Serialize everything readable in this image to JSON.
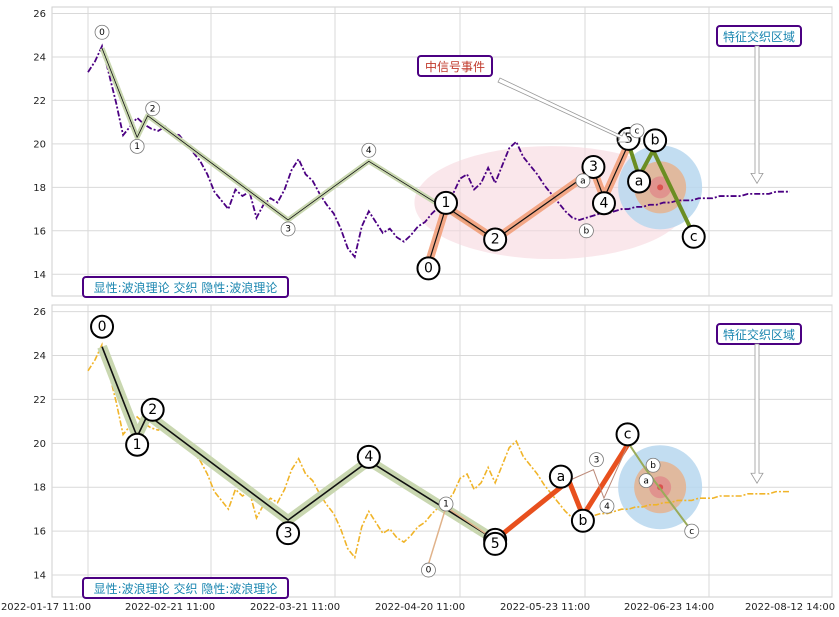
{
  "colors": {
    "top_price": "#4b0082",
    "bottom_price": "#f0b429",
    "wave_band": "#c9d7b0",
    "wave_line": "#111111",
    "orange_band": "#f2a07b",
    "green_seg": "#6b8e23",
    "red_seg": "#e8501e",
    "ellipse_fill": "#f7d7de",
    "target_outer": "#b7d7ef",
    "target_inner": "#e7b08a",
    "target_center": "#d9534f",
    "box_border": "#4b0082",
    "box_text_blue": "#1a86b0",
    "box_text_red": "#c0392b"
  },
  "chart_data": [
    {
      "type": "line",
      "panel": "top",
      "y_ticks": [
        "14",
        "16",
        "18",
        "20",
        "22",
        "24",
        "26"
      ],
      "ylim": [
        13.0,
        26.3
      ],
      "x_index_range": [
        0,
        100
      ],
      "grid": true,
      "series": [
        {
          "style": "dash-dot",
          "x": [
            0,
            1,
            2,
            3,
            4,
            5,
            6,
            7,
            8,
            9,
            10,
            11,
            12,
            13,
            14,
            15,
            16,
            17,
            18,
            19,
            20,
            21,
            22,
            23,
            24,
            25,
            26,
            27,
            28,
            29,
            30,
            31,
            32,
            33,
            34,
            35,
            36,
            37,
            38,
            39,
            40,
            41,
            42,
            43,
            44,
            45,
            46,
            47,
            48,
            49,
            50,
            51,
            52,
            53,
            54,
            55,
            56,
            57,
            58,
            59,
            60,
            61,
            62,
            63,
            64,
            65,
            66,
            67,
            68,
            69,
            70,
            71,
            72,
            73,
            74,
            75,
            76,
            77,
            78,
            79,
            80,
            81,
            82,
            83,
            84,
            85,
            86,
            87,
            88,
            89,
            90,
            91,
            92,
            93,
            94,
            95,
            96,
            97,
            98,
            99,
            100
          ],
          "y": [
            23.3,
            23.8,
            24.5,
            23.2,
            21.9,
            20.4,
            20.8,
            21.2,
            20.9,
            20.7,
            20.6,
            20.8,
            20.5,
            20.4,
            20.0,
            19.6,
            19.2,
            18.6,
            17.8,
            17.4,
            17.0,
            17.9,
            17.6,
            17.8,
            16.6,
            17.2,
            17.5,
            17.3,
            17.9,
            18.8,
            19.3,
            18.6,
            18.3,
            17.7,
            17.2,
            16.8,
            16.1,
            15.2,
            14.8,
            16.2,
            16.9,
            16.4,
            15.9,
            16.1,
            15.7,
            15.5,
            15.8,
            16.2,
            16.4,
            16.8,
            17.1,
            17.3,
            17.7,
            18.4,
            18.6,
            17.9,
            18.2,
            18.9,
            18.2,
            19.0,
            19.8,
            20.1,
            19.4,
            19.0,
            18.6,
            18.1,
            17.7,
            17.3,
            16.9,
            16.6,
            16.5,
            16.6,
            16.7,
            16.8,
            16.8,
            16.9,
            17.0,
            17.0,
            17.1,
            17.1,
            17.2,
            17.2,
            17.3,
            17.3,
            17.4,
            17.4,
            17.4,
            17.5,
            17.5,
            17.5,
            17.6,
            17.6,
            17.6,
            17.6,
            17.7,
            17.7,
            17.7,
            17.7,
            17.8,
            17.8,
            17.8
          ]
        }
      ],
      "wave_points": [
        {
          "label": "0",
          "x": 2.0,
          "y": 24.4
        },
        {
          "label": "1",
          "x": 7.0,
          "y": 20.3
        },
        {
          "label": "2",
          "x": 8.5,
          "y": 21.3
        },
        {
          "label": "3",
          "x": 28.5,
          "y": 16.5
        },
        {
          "label": "4",
          "x": 40.0,
          "y": 19.2
        },
        {
          "label": "5",
          "x": 58.0,
          "y": 15.6
        }
      ],
      "sub_wave_points": [
        {
          "label": "0",
          "x": 48.5,
          "y": 14.5
        },
        {
          "label": "1",
          "x": 51.0,
          "y": 17.1
        },
        {
          "label": "2",
          "x": 58.0,
          "y": 15.6
        },
        {
          "label": "3",
          "x": 72.0,
          "y": 18.8
        },
        {
          "label": "4",
          "x": 73.5,
          "y": 17.5
        },
        {
          "label": "5",
          "x": 77.0,
          "y": 20.0
        },
        {
          "label": "a",
          "x": 78.5,
          "y": 18.5
        },
        {
          "label": "b",
          "x": 80.5,
          "y": 19.7
        },
        {
          "label": "c",
          "x": 86.0,
          "y": 16.0
        }
      ],
      "small_labels": [
        "a",
        "b",
        "c"
      ],
      "ellipse": {
        "x_center": 66.0,
        "y_center": 17.3,
        "x_radius": 19.5,
        "y_radius": 2.6
      },
      "target": {
        "x": 81.5,
        "y": 18.0
      },
      "annotations": {
        "signal": "中信号事件",
        "zone": "特征交织区域",
        "footer": "显性:波浪理论 交织 隐性:波浪理论"
      }
    },
    {
      "type": "line",
      "panel": "bottom",
      "y_ticks": [
        "14",
        "16",
        "18",
        "20",
        "22",
        "24",
        "26"
      ],
      "ylim": [
        13.0,
        26.3
      ],
      "x_index_range": [
        0,
        100
      ],
      "grid": true,
      "series": [
        {
          "style": "dash-dot",
          "x": [
            0,
            1,
            2,
            3,
            4,
            5,
            6,
            7,
            8,
            9,
            10,
            11,
            12,
            13,
            14,
            15,
            16,
            17,
            18,
            19,
            20,
            21,
            22,
            23,
            24,
            25,
            26,
            27,
            28,
            29,
            30,
            31,
            32,
            33,
            34,
            35,
            36,
            37,
            38,
            39,
            40,
            41,
            42,
            43,
            44,
            45,
            46,
            47,
            48,
            49,
            50,
            51,
            52,
            53,
            54,
            55,
            56,
            57,
            58,
            59,
            60,
            61,
            62,
            63,
            64,
            65,
            66,
            67,
            68,
            69,
            70,
            71,
            72,
            73,
            74,
            75,
            76,
            77,
            78,
            79,
            80,
            81,
            82,
            83,
            84,
            85,
            86,
            87,
            88,
            89,
            90,
            91,
            92,
            93,
            94,
            95,
            96,
            97,
            98,
            99,
            100
          ],
          "y": [
            23.3,
            23.8,
            24.5,
            23.2,
            21.9,
            20.4,
            20.8,
            21.2,
            20.9,
            20.7,
            20.6,
            20.8,
            20.5,
            20.4,
            20.0,
            19.6,
            19.2,
            18.6,
            17.8,
            17.4,
            17.0,
            17.9,
            17.6,
            17.8,
            16.6,
            17.2,
            17.5,
            17.3,
            17.9,
            18.8,
            19.3,
            18.6,
            18.3,
            17.7,
            17.2,
            16.8,
            16.1,
            15.2,
            14.8,
            16.2,
            16.9,
            16.4,
            15.9,
            16.1,
            15.7,
            15.5,
            15.8,
            16.2,
            16.4,
            16.8,
            17.1,
            17.3,
            17.7,
            18.4,
            18.6,
            17.9,
            18.2,
            18.9,
            18.2,
            19.0,
            19.8,
            20.1,
            19.4,
            19.0,
            18.6,
            18.1,
            17.7,
            17.3,
            16.9,
            16.6,
            16.5,
            16.6,
            16.7,
            16.8,
            16.8,
            16.9,
            17.0,
            17.0,
            17.1,
            17.1,
            17.2,
            17.2,
            17.3,
            17.3,
            17.4,
            17.4,
            17.4,
            17.5,
            17.5,
            17.5,
            17.6,
            17.6,
            17.6,
            17.6,
            17.7,
            17.7,
            17.7,
            17.7,
            17.8,
            17.8,
            17.8
          ]
        }
      ],
      "wave_points": [
        {
          "label": "0",
          "x": 2.0,
          "y": 24.4
        },
        {
          "label": "1",
          "x": 7.0,
          "y": 20.3
        },
        {
          "label": "2",
          "x": 8.5,
          "y": 21.3
        },
        {
          "label": "3",
          "x": 28.5,
          "y": 16.5
        },
        {
          "label": "4",
          "x": 40.0,
          "y": 19.2
        },
        {
          "label": "5",
          "x": 58.0,
          "y": 15.6
        }
      ],
      "sub_wave_points": [
        {
          "label": "0",
          "x": 48.5,
          "y": 14.5
        },
        {
          "label": "1",
          "x": 51.0,
          "y": 17.1
        },
        {
          "label": "2",
          "x": 58.0,
          "y": 15.6
        },
        {
          "label": "a",
          "x": 68.5,
          "y": 18.3
        },
        {
          "label": "b",
          "x": 70.5,
          "y": 16.7
        },
        {
          "label": "c",
          "x": 77.0,
          "y": 20.0
        },
        {
          "label": "3",
          "x": 72.0,
          "y": 18.8
        },
        {
          "label": "4",
          "x": 73.5,
          "y": 17.5
        },
        {
          "label": "5",
          "x": 77.0,
          "y": 20.0
        }
      ],
      "small_labels": [
        "a",
        "b",
        "c"
      ],
      "target": {
        "x": 81.5,
        "y": 18.0
      },
      "annotations": {
        "zone": "特征交织区域",
        "footer": "显性:波浪理论 交织 隐性:波浪理论"
      }
    }
  ],
  "x_ticks": [
    "2022-01-17 11:00",
    "2022-02-21 11:00",
    "2022-03-21 11:00",
    "2022-04-20 11:00",
    "2022-05-23 11:00",
    "2022-06-23 14:00",
    "2022-08-12 14:00"
  ]
}
